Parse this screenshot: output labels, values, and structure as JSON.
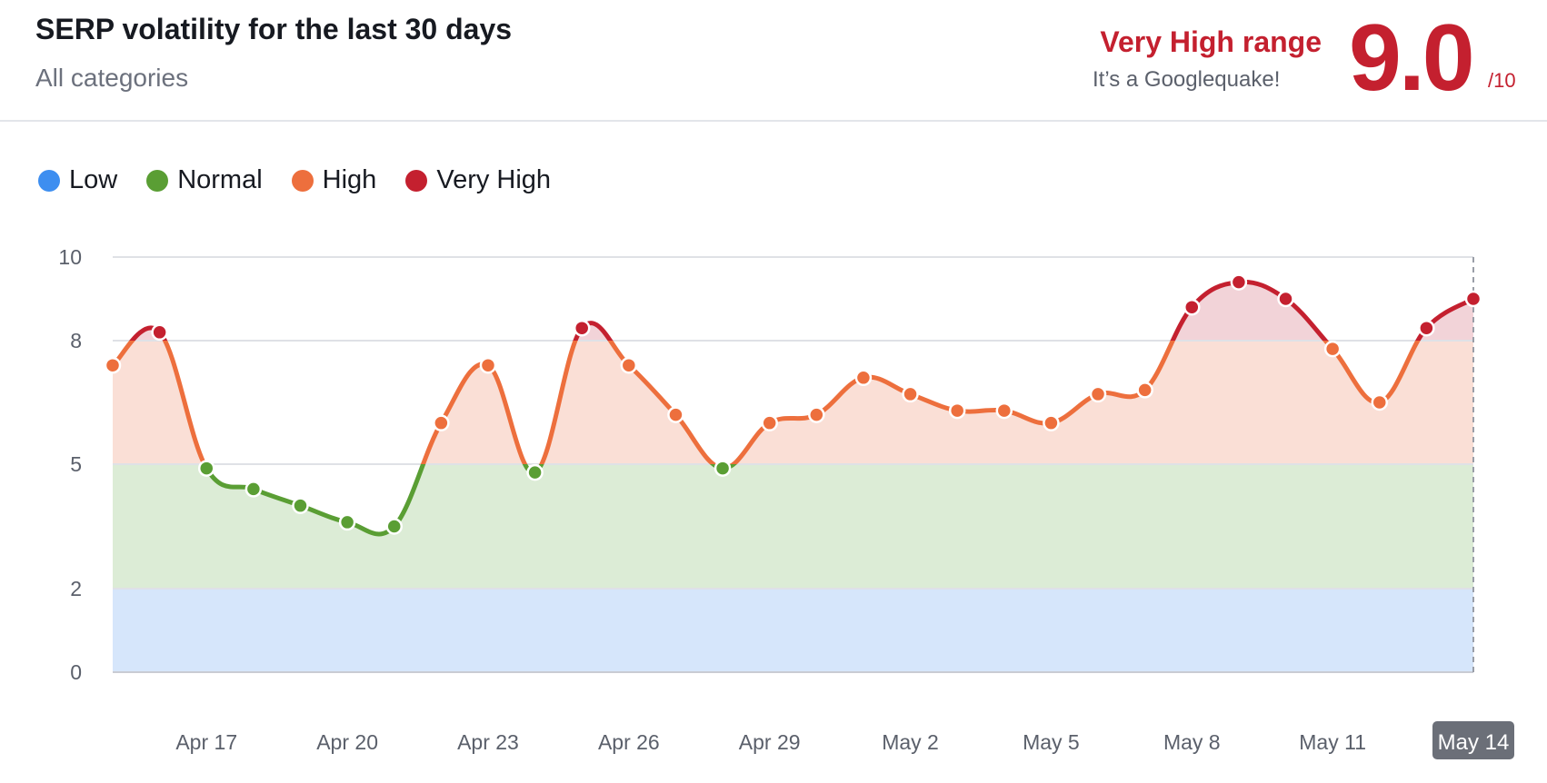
{
  "header": {
    "title": "SERP volatility for the last 30 days",
    "subtitle": "All categories",
    "range_label": "Very High range",
    "range_note": "It’s a Googlequake!",
    "score": "9.0",
    "score_denominator": "/10"
  },
  "legend": [
    {
      "label": "Low",
      "color": "#3d8ef0"
    },
    {
      "label": "Normal",
      "color": "#5a9e34"
    },
    {
      "label": "High",
      "color": "#ed6f3d"
    },
    {
      "label": "Very High",
      "color": "#c4202f"
    }
  ],
  "colors": {
    "low_band": "#d6e6fb",
    "normal_band": "#dcecd6",
    "high_band": "#fadfd6",
    "very_high_band": "#f2d3d8",
    "low": "#3d8ef0",
    "normal": "#5a9e34",
    "high": "#ed6f3d",
    "very_high": "#c4202f",
    "selected_tick_bg": "#6b6f78"
  },
  "chart_data": {
    "type": "line",
    "title": "SERP volatility for the last 30 days",
    "ylim": [
      0,
      10
    ],
    "yticks": [
      0,
      2,
      5,
      8,
      10
    ],
    "x_tick_labels": [
      "Apr 17",
      "Apr 20",
      "Apr 23",
      "Apr 26",
      "Apr 29",
      "May 2",
      "May 5",
      "May 8",
      "May 11",
      "May 14"
    ],
    "x_tick_indices": [
      2,
      5,
      8,
      11,
      14,
      17,
      20,
      23,
      26,
      29
    ],
    "selected_label": "May 14",
    "bands": [
      {
        "name": "Low",
        "from": 0,
        "to": 2
      },
      {
        "name": "Normal",
        "from": 2,
        "to": 5
      },
      {
        "name": "High",
        "from": 5,
        "to": 8
      },
      {
        "name": "Very High",
        "from": 8,
        "to": 10
      }
    ],
    "x": [
      "Apr 15",
      "Apr 16",
      "Apr 17",
      "Apr 18",
      "Apr 19",
      "Apr 20",
      "Apr 21",
      "Apr 22",
      "Apr 23",
      "Apr 24",
      "Apr 25",
      "Apr 26",
      "Apr 27",
      "Apr 28",
      "Apr 29",
      "Apr 30",
      "May 1",
      "May 2",
      "May 3",
      "May 4",
      "May 5",
      "May 6",
      "May 7",
      "May 8",
      "May 9",
      "May 10",
      "May 11",
      "May 12",
      "May 13",
      "May 14"
    ],
    "values": [
      7.4,
      8.2,
      4.9,
      4.4,
      4.0,
      3.6,
      3.5,
      6.0,
      7.4,
      4.8,
      8.3,
      7.4,
      6.2,
      4.9,
      6.0,
      6.2,
      7.1,
      6.7,
      6.3,
      6.3,
      6.0,
      6.7,
      6.8,
      8.8,
      9.4,
      9.0,
      7.8,
      6.5,
      8.3,
      9.0
    ]
  }
}
